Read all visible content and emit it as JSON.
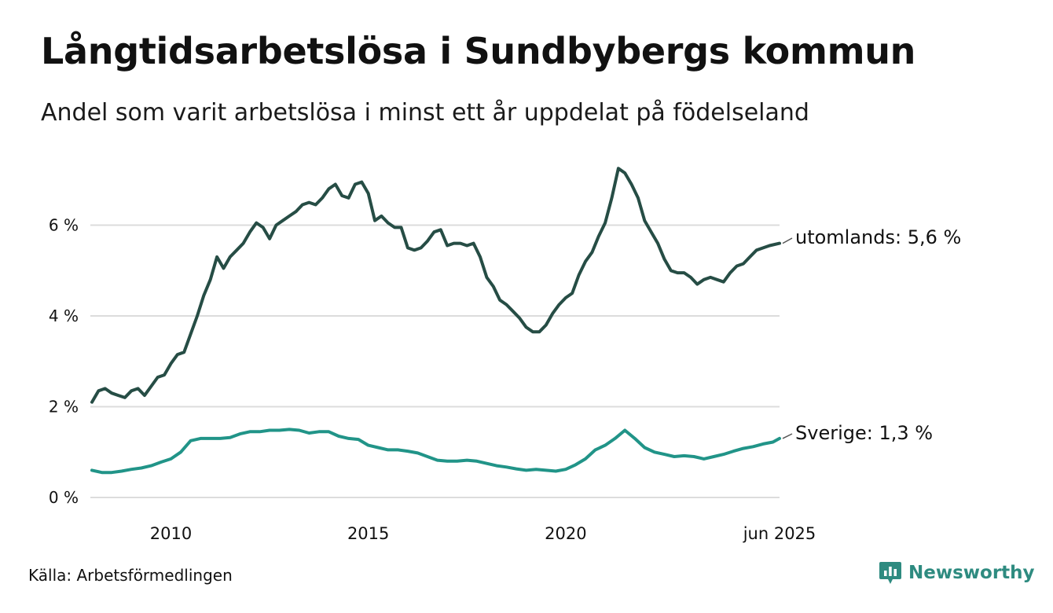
{
  "chart_data": {
    "type": "line",
    "title": "Långtidsarbetslösa i Sundbybergs kommun",
    "subtitle": "Andel som varit arbetslösa i minst ett år uppdelat på födelseland",
    "xlabel": "",
    "ylabel": "",
    "x_range": [
      "2008-01",
      "2025-06"
    ],
    "ylim": [
      0,
      7.5
    ],
    "y_ticks": [
      {
        "value": 0,
        "label": "0 %"
      },
      {
        "value": 2,
        "label": "2 %"
      },
      {
        "value": 4,
        "label": "4 %"
      },
      {
        "value": 6,
        "label": "6 %"
      }
    ],
    "x_ticks": [
      {
        "date": "2010-01",
        "label": "2010"
      },
      {
        "date": "2015-01",
        "label": "2015"
      },
      {
        "date": "2020-01",
        "label": "2020"
      },
      {
        "date": "2025-06",
        "label": "jun 2025"
      }
    ],
    "grid": "horizontal",
    "legend": "end-labels",
    "series": [
      {
        "name": "utomlands",
        "end_label": "utomlands: 5,6 %",
        "color": "#264d45",
        "points": [
          [
            "2008-01",
            2.1
          ],
          [
            "2008-03",
            2.35
          ],
          [
            "2008-05",
            2.4
          ],
          [
            "2008-07",
            2.3
          ],
          [
            "2008-09",
            2.25
          ],
          [
            "2008-11",
            2.2
          ],
          [
            "2009-01",
            2.35
          ],
          [
            "2009-03",
            2.4
          ],
          [
            "2009-05",
            2.25
          ],
          [
            "2009-07",
            2.45
          ],
          [
            "2009-09",
            2.65
          ],
          [
            "2009-11",
            2.7
          ],
          [
            "2010-01",
            2.95
          ],
          [
            "2010-03",
            3.15
          ],
          [
            "2010-05",
            3.2
          ],
          [
            "2010-07",
            3.6
          ],
          [
            "2010-09",
            4.0
          ],
          [
            "2010-11",
            4.45
          ],
          [
            "2011-01",
            4.8
          ],
          [
            "2011-03",
            5.3
          ],
          [
            "2011-05",
            5.05
          ],
          [
            "2011-07",
            5.3
          ],
          [
            "2011-09",
            5.45
          ],
          [
            "2011-11",
            5.6
          ],
          [
            "2012-01",
            5.85
          ],
          [
            "2012-03",
            6.05
          ],
          [
            "2012-05",
            5.95
          ],
          [
            "2012-07",
            5.7
          ],
          [
            "2012-09",
            6.0
          ],
          [
            "2012-11",
            6.1
          ],
          [
            "2013-01",
            6.2
          ],
          [
            "2013-03",
            6.3
          ],
          [
            "2013-05",
            6.45
          ],
          [
            "2013-07",
            6.5
          ],
          [
            "2013-09",
            6.45
          ],
          [
            "2013-11",
            6.6
          ],
          [
            "2014-01",
            6.8
          ],
          [
            "2014-03",
            6.9
          ],
          [
            "2014-05",
            6.65
          ],
          [
            "2014-07",
            6.6
          ],
          [
            "2014-09",
            6.9
          ],
          [
            "2014-11",
            6.95
          ],
          [
            "2015-01",
            6.7
          ],
          [
            "2015-03",
            6.1
          ],
          [
            "2015-05",
            6.2
          ],
          [
            "2015-07",
            6.05
          ],
          [
            "2015-09",
            5.95
          ],
          [
            "2015-11",
            5.95
          ],
          [
            "2016-01",
            5.5
          ],
          [
            "2016-03",
            5.45
          ],
          [
            "2016-05",
            5.5
          ],
          [
            "2016-07",
            5.65
          ],
          [
            "2016-09",
            5.85
          ],
          [
            "2016-11",
            5.9
          ],
          [
            "2017-01",
            5.55
          ],
          [
            "2017-03",
            5.6
          ],
          [
            "2017-05",
            5.6
          ],
          [
            "2017-07",
            5.55
          ],
          [
            "2017-09",
            5.6
          ],
          [
            "2017-11",
            5.3
          ],
          [
            "2018-01",
            4.85
          ],
          [
            "2018-03",
            4.65
          ],
          [
            "2018-05",
            4.35
          ],
          [
            "2018-07",
            4.25
          ],
          [
            "2018-09",
            4.1
          ],
          [
            "2018-11",
            3.95
          ],
          [
            "2019-01",
            3.75
          ],
          [
            "2019-03",
            3.65
          ],
          [
            "2019-05",
            3.65
          ],
          [
            "2019-07",
            3.8
          ],
          [
            "2019-09",
            4.05
          ],
          [
            "2019-11",
            4.25
          ],
          [
            "2020-01",
            4.4
          ],
          [
            "2020-03",
            4.5
          ],
          [
            "2020-05",
            4.9
          ],
          [
            "2020-07",
            5.2
          ],
          [
            "2020-09",
            5.4
          ],
          [
            "2020-11",
            5.75
          ],
          [
            "2021-01",
            6.05
          ],
          [
            "2021-03",
            6.6
          ],
          [
            "2021-05",
            7.25
          ],
          [
            "2021-07",
            7.15
          ],
          [
            "2021-09",
            6.9
          ],
          [
            "2021-11",
            6.6
          ],
          [
            "2022-01",
            6.1
          ],
          [
            "2022-03",
            5.85
          ],
          [
            "2022-05",
            5.6
          ],
          [
            "2022-07",
            5.25
          ],
          [
            "2022-09",
            5.0
          ],
          [
            "2022-11",
            4.95
          ],
          [
            "2023-01",
            4.95
          ],
          [
            "2023-03",
            4.85
          ],
          [
            "2023-05",
            4.7
          ],
          [
            "2023-07",
            4.8
          ],
          [
            "2023-09",
            4.85
          ],
          [
            "2023-11",
            4.8
          ],
          [
            "2024-01",
            4.75
          ],
          [
            "2024-03",
            4.95
          ],
          [
            "2024-05",
            5.1
          ],
          [
            "2024-07",
            5.15
          ],
          [
            "2024-09",
            5.3
          ],
          [
            "2024-11",
            5.45
          ],
          [
            "2025-01",
            5.5
          ],
          [
            "2025-03",
            5.55
          ],
          [
            "2025-06",
            5.6
          ]
        ]
      },
      {
        "name": "Sverige",
        "end_label": "Sverige: 1,3 %",
        "color": "#219488",
        "points": [
          [
            "2008-01",
            0.6
          ],
          [
            "2008-04",
            0.55
          ],
          [
            "2008-07",
            0.55
          ],
          [
            "2008-10",
            0.58
          ],
          [
            "2009-01",
            0.62
          ],
          [
            "2009-04",
            0.65
          ],
          [
            "2009-07",
            0.7
          ],
          [
            "2009-10",
            0.78
          ],
          [
            "2010-01",
            0.85
          ],
          [
            "2010-04",
            1.0
          ],
          [
            "2010-07",
            1.25
          ],
          [
            "2010-10",
            1.3
          ],
          [
            "2011-01",
            1.3
          ],
          [
            "2011-04",
            1.3
          ],
          [
            "2011-07",
            1.32
          ],
          [
            "2011-10",
            1.4
          ],
          [
            "2012-01",
            1.45
          ],
          [
            "2012-04",
            1.45
          ],
          [
            "2012-07",
            1.48
          ],
          [
            "2012-10",
            1.48
          ],
          [
            "2013-01",
            1.5
          ],
          [
            "2013-04",
            1.48
          ],
          [
            "2013-07",
            1.42
          ],
          [
            "2013-10",
            1.45
          ],
          [
            "2014-01",
            1.45
          ],
          [
            "2014-04",
            1.35
          ],
          [
            "2014-07",
            1.3
          ],
          [
            "2014-10",
            1.28
          ],
          [
            "2015-01",
            1.15
          ],
          [
            "2015-04",
            1.1
          ],
          [
            "2015-07",
            1.05
          ],
          [
            "2015-10",
            1.05
          ],
          [
            "2016-01",
            1.02
          ],
          [
            "2016-04",
            0.98
          ],
          [
            "2016-07",
            0.9
          ],
          [
            "2016-10",
            0.82
          ],
          [
            "2017-01",
            0.8
          ],
          [
            "2017-04",
            0.8
          ],
          [
            "2017-07",
            0.82
          ],
          [
            "2017-10",
            0.8
          ],
          [
            "2018-01",
            0.75
          ],
          [
            "2018-04",
            0.7
          ],
          [
            "2018-07",
            0.67
          ],
          [
            "2018-10",
            0.63
          ],
          [
            "2019-01",
            0.6
          ],
          [
            "2019-04",
            0.62
          ],
          [
            "2019-07",
            0.6
          ],
          [
            "2019-10",
            0.58
          ],
          [
            "2020-01",
            0.62
          ],
          [
            "2020-04",
            0.72
          ],
          [
            "2020-07",
            0.85
          ],
          [
            "2020-10",
            1.05
          ],
          [
            "2021-01",
            1.15
          ],
          [
            "2021-04",
            1.3
          ],
          [
            "2021-07",
            1.48
          ],
          [
            "2021-10",
            1.3
          ],
          [
            "2022-01",
            1.1
          ],
          [
            "2022-04",
            1.0
          ],
          [
            "2022-07",
            0.95
          ],
          [
            "2022-10",
            0.9
          ],
          [
            "2023-01",
            0.92
          ],
          [
            "2023-04",
            0.9
          ],
          [
            "2023-07",
            0.85
          ],
          [
            "2023-10",
            0.9
          ],
          [
            "2024-01",
            0.95
          ],
          [
            "2024-04",
            1.02
          ],
          [
            "2024-07",
            1.08
          ],
          [
            "2024-10",
            1.12
          ],
          [
            "2025-01",
            1.18
          ],
          [
            "2025-04",
            1.22
          ],
          [
            "2025-06",
            1.3
          ]
        ]
      }
    ]
  },
  "footer": {
    "source": "Källa: Arbetsförmedlingen",
    "brand": "Newsworthy",
    "brand_color": "#2e8b80",
    "brand_icon": "newsworthy-logo-icon"
  }
}
